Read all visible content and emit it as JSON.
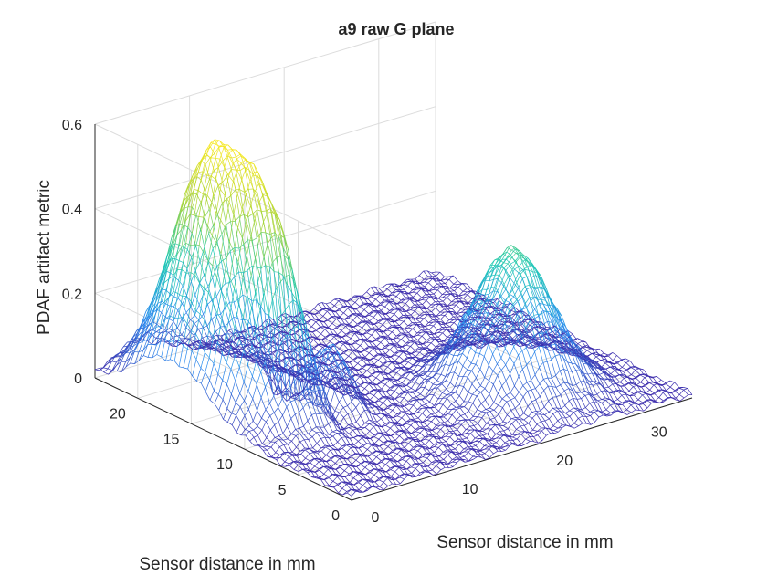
{
  "chart_data": {
    "type": "surface",
    "title": "a9 raw G plane",
    "xlabel": "Sensor distance in mm",
    "ylabel": "Sensor distance in mm",
    "zlabel": "PDAF artifact metric",
    "xlim": [
      0,
      36
    ],
    "ylim": [
      0,
      24
    ],
    "zlim": [
      0,
      0.6
    ],
    "xticks": [
      "0",
      "10",
      "20",
      "30"
    ],
    "yticks": [
      "0",
      "5",
      "10",
      "15",
      "20"
    ],
    "zticks": [
      "0",
      "0.2",
      "0.4",
      "0.6"
    ],
    "grid": true,
    "colormap": [
      "#3e26a8",
      "#2c8ef0",
      "#1fc9b5",
      "#a5d43a",
      "#f5e722"
    ],
    "peaks": [
      {
        "x": 4.5,
        "y": 17,
        "z": 0.57
      },
      {
        "x": 25,
        "y": 7,
        "z": 0.33
      }
    ],
    "features": [
      {
        "shape": "valley",
        "x": 9,
        "y": 12.5,
        "z": 0.3
      },
      {
        "shape": "shoulder",
        "x": 9,
        "y": 11,
        "z": 0.41
      }
    ],
    "background_level": 0.01
  }
}
